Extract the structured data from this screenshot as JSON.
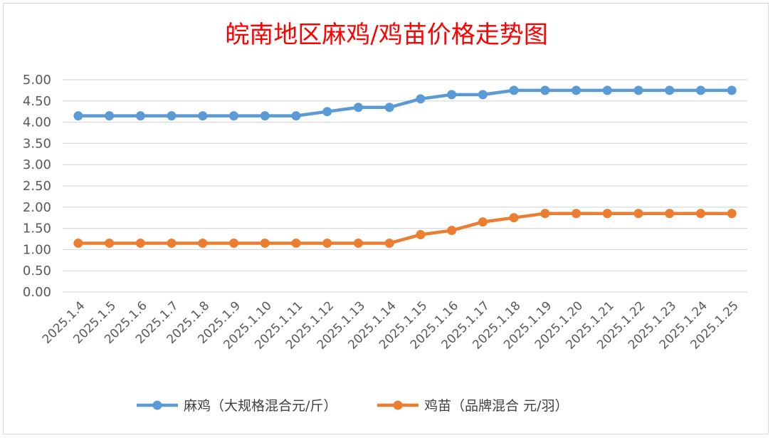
{
  "chart_data": {
    "type": "line",
    "title": "皖南地区麻鸡/鸡苗价格走势图",
    "categories": [
      "2025.1.4",
      "2025.1.5",
      "2025.1.6",
      "2025.1.7",
      "2025.1.8",
      "2025.1.9",
      "2025.1.10",
      "2025.1.11",
      "2025.1.12",
      "2025.1.13",
      "2025.1.14",
      "2025.1.15",
      "2025.1.16",
      "2025.1.17",
      "2025.1.18",
      "2025.1.19",
      "2025.1.20",
      "2025.1.21",
      "2025.1.22",
      "2025.1.23",
      "2025.1.24",
      "2025.1.25"
    ],
    "y_ticks": [
      "0.00",
      "0.50",
      "1.00",
      "1.50",
      "2.00",
      "2.50",
      "3.00",
      "3.50",
      "4.00",
      "4.50",
      "5.00"
    ],
    "ylim": [
      0,
      5
    ],
    "grid": true,
    "legend_position": "bottom",
    "series": [
      {
        "name": "麻鸡（大规格混合元/斤）",
        "color": "#5b9bd5",
        "values": [
          4.15,
          4.15,
          4.15,
          4.15,
          4.15,
          4.15,
          4.15,
          4.15,
          4.25,
          4.35,
          4.35,
          4.55,
          4.65,
          4.65,
          4.75,
          4.75,
          4.75,
          4.75,
          4.75,
          4.75,
          4.75,
          4.75
        ]
      },
      {
        "name": "鸡苗（品牌混合 元/羽）",
        "color": "#ed7d31",
        "values": [
          1.15,
          1.15,
          1.15,
          1.15,
          1.15,
          1.15,
          1.15,
          1.15,
          1.15,
          1.15,
          1.15,
          1.35,
          1.45,
          1.65,
          1.75,
          1.85,
          1.85,
          1.85,
          1.85,
          1.85,
          1.85,
          1.85
        ]
      }
    ]
  }
}
